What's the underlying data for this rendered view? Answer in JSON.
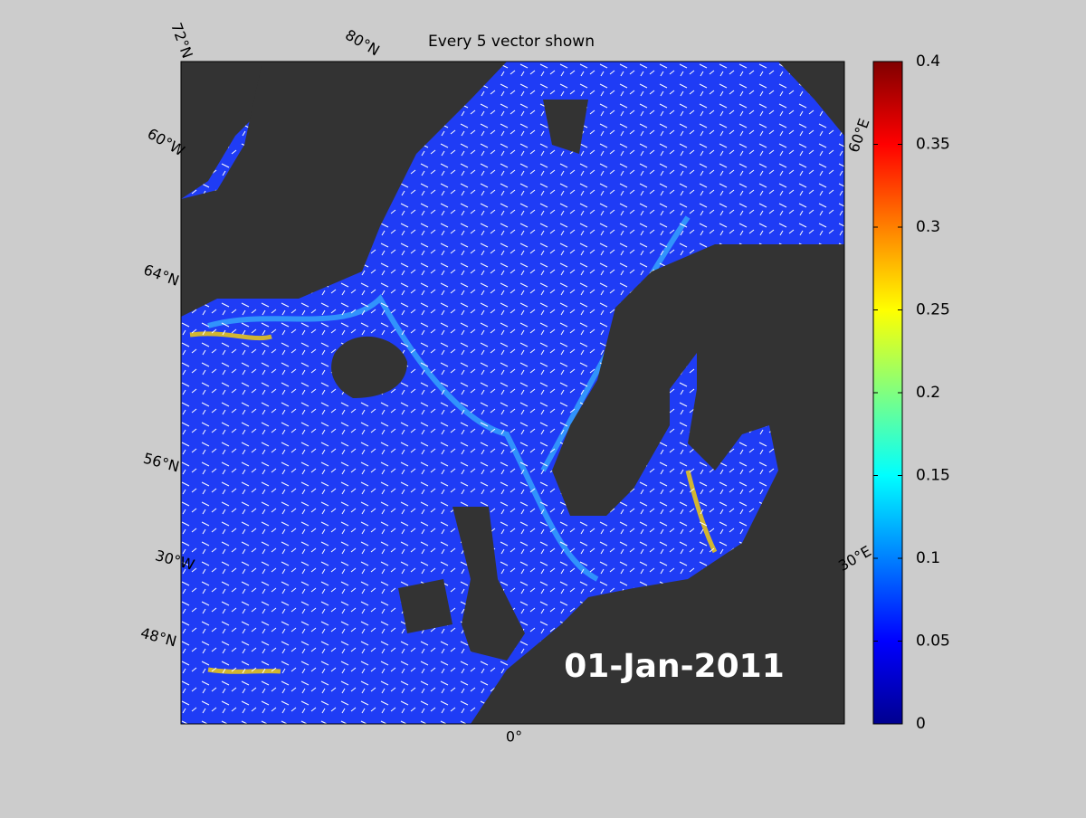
{
  "title": "Every 5 vector shown",
  "date_label": "01-Jan-2011",
  "graticule_labels": [
    "72°N",
    "80°N",
    "60°W",
    "64°N",
    "56°N",
    "30°W",
    "48°N",
    "0°",
    "30°E",
    "60°E"
  ],
  "colorbar": {
    "colormap": "jet",
    "lim": [
      0,
      0.4
    ],
    "ticks": [
      0,
      0.05,
      0.1,
      0.15,
      0.2,
      0.25,
      0.3,
      0.35,
      0.4
    ]
  }
}
